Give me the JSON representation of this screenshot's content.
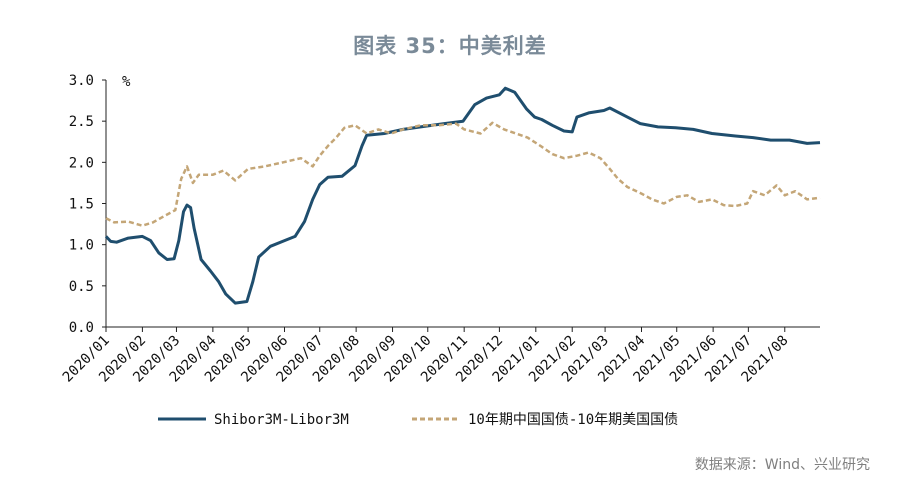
{
  "title": "图表 35：中美利差",
  "source": "数据来源：Wind、兴业研究",
  "chart_data": {
    "type": "line",
    "ylabel": "%",
    "ylim": [
      0,
      3
    ],
    "yticks": [
      "0.0",
      "0.5",
      "1.0",
      "1.5",
      "2.0",
      "2.5",
      "3.0"
    ],
    "xlim": [
      "2020-01-01",
      "2021-08-31"
    ],
    "xticks": [
      "2020/01",
      "2020/02",
      "2020/03",
      "2020/04",
      "2020/05",
      "2020/06",
      "2020/07",
      "2020/08",
      "2020/09",
      "2020/10",
      "2020/11",
      "2020/12",
      "2021/01",
      "2021/02",
      "2021/03",
      "2021/04",
      "2021/05",
      "2021/06",
      "2021/07",
      "2021/08"
    ],
    "colors": {
      "shibor": "#1f4e6e",
      "cn_us": "#c4a677"
    },
    "series": [
      {
        "name": "Shibor3M-Libor3M",
        "style": "solid",
        "points": [
          [
            "2020-01-01",
            1.1
          ],
          [
            "2020-01-05",
            1.04
          ],
          [
            "2020-01-10",
            1.03
          ],
          [
            "2020-01-20",
            1.08
          ],
          [
            "2020-02-01",
            1.1
          ],
          [
            "2020-02-08",
            1.05
          ],
          [
            "2020-02-15",
            0.9
          ],
          [
            "2020-02-22",
            0.82
          ],
          [
            "2020-02-28",
            0.83
          ],
          [
            "2020-03-03",
            1.05
          ],
          [
            "2020-03-07",
            1.4
          ],
          [
            "2020-03-10",
            1.48
          ],
          [
            "2020-03-13",
            1.45
          ],
          [
            "2020-03-16",
            1.2
          ],
          [
            "2020-03-22",
            0.82
          ],
          [
            "2020-03-30",
            0.68
          ],
          [
            "2020-04-06",
            0.55
          ],
          [
            "2020-04-12",
            0.4
          ],
          [
            "2020-04-20",
            0.29
          ],
          [
            "2020-04-30",
            0.31
          ],
          [
            "2020-05-05",
            0.55
          ],
          [
            "2020-05-10",
            0.85
          ],
          [
            "2020-05-20",
            0.98
          ],
          [
            "2020-06-01",
            1.05
          ],
          [
            "2020-06-10",
            1.1
          ],
          [
            "2020-06-18",
            1.28
          ],
          [
            "2020-06-25",
            1.55
          ],
          [
            "2020-07-01",
            1.73
          ],
          [
            "2020-07-08",
            1.82
          ],
          [
            "2020-07-20",
            1.83
          ],
          [
            "2020-07-31",
            1.96
          ],
          [
            "2020-08-06",
            2.2
          ],
          [
            "2020-08-10",
            2.33
          ],
          [
            "2020-08-25",
            2.35
          ],
          [
            "2020-09-10",
            2.4
          ],
          [
            "2020-09-25",
            2.43
          ],
          [
            "2020-10-15",
            2.47
          ],
          [
            "2020-10-31",
            2.5
          ],
          [
            "2020-11-10",
            2.7
          ],
          [
            "2020-11-20",
            2.78
          ],
          [
            "2020-12-01",
            2.82
          ],
          [
            "2020-12-06",
            2.9
          ],
          [
            "2020-12-14",
            2.85
          ],
          [
            "2020-12-24",
            2.65
          ],
          [
            "2020-12-31",
            2.55
          ],
          [
            "2021-01-06",
            2.52
          ],
          [
            "2021-01-15",
            2.45
          ],
          [
            "2021-01-25",
            2.38
          ],
          [
            "2021-02-01",
            2.37
          ],
          [
            "2021-02-05",
            2.55
          ],
          [
            "2021-02-15",
            2.6
          ],
          [
            "2021-02-28",
            2.63
          ],
          [
            "2021-03-05",
            2.66
          ],
          [
            "2021-03-20",
            2.55
          ],
          [
            "2021-03-31",
            2.47
          ],
          [
            "2021-04-15",
            2.43
          ],
          [
            "2021-04-30",
            2.42
          ],
          [
            "2021-05-15",
            2.4
          ],
          [
            "2021-05-31",
            2.35
          ],
          [
            "2021-06-20",
            2.32
          ],
          [
            "2021-07-05",
            2.3
          ],
          [
            "2021-07-20",
            2.27
          ],
          [
            "2021-08-05",
            2.27
          ],
          [
            "2021-08-20",
            2.23
          ],
          [
            "2021-08-31",
            2.24
          ]
        ]
      },
      {
        "name": "10年期中国国债-10年期美国国债",
        "style": "dashed",
        "points": [
          [
            "2020-01-01",
            1.32
          ],
          [
            "2020-01-08",
            1.27
          ],
          [
            "2020-01-20",
            1.28
          ],
          [
            "2020-02-01",
            1.23
          ],
          [
            "2020-02-10",
            1.27
          ],
          [
            "2020-02-20",
            1.35
          ],
          [
            "2020-02-29",
            1.42
          ],
          [
            "2020-03-05",
            1.8
          ],
          [
            "2020-03-10",
            1.95
          ],
          [
            "2020-03-15",
            1.75
          ],
          [
            "2020-03-20",
            1.85
          ],
          [
            "2020-04-01",
            1.85
          ],
          [
            "2020-04-10",
            1.9
          ],
          [
            "2020-04-20",
            1.78
          ],
          [
            "2020-05-01",
            1.92
          ],
          [
            "2020-05-15",
            1.95
          ],
          [
            "2020-05-31",
            2.0
          ],
          [
            "2020-06-15",
            2.05
          ],
          [
            "2020-06-25",
            1.95
          ],
          [
            "2020-07-01",
            2.08
          ],
          [
            "2020-07-08",
            2.2
          ],
          [
            "2020-07-15",
            2.3
          ],
          [
            "2020-07-22",
            2.42
          ],
          [
            "2020-07-31",
            2.45
          ],
          [
            "2020-08-10",
            2.35
          ],
          [
            "2020-08-20",
            2.4
          ],
          [
            "2020-08-31",
            2.35
          ],
          [
            "2020-09-10",
            2.4
          ],
          [
            "2020-09-25",
            2.45
          ],
          [
            "2020-10-10",
            2.45
          ],
          [
            "2020-10-25",
            2.47
          ],
          [
            "2020-11-01",
            2.4
          ],
          [
            "2020-11-15",
            2.35
          ],
          [
            "2020-11-25",
            2.48
          ],
          [
            "2020-12-05",
            2.4
          ],
          [
            "2020-12-15",
            2.35
          ],
          [
            "2020-12-25",
            2.3
          ],
          [
            "2021-01-05",
            2.2
          ],
          [
            "2021-01-15",
            2.1
          ],
          [
            "2021-01-25",
            2.05
          ],
          [
            "2021-02-05",
            2.08
          ],
          [
            "2021-02-15",
            2.12
          ],
          [
            "2021-02-25",
            2.05
          ],
          [
            "2021-03-05",
            1.92
          ],
          [
            "2021-03-12",
            1.8
          ],
          [
            "2021-03-20",
            1.7
          ],
          [
            "2021-04-01",
            1.62
          ],
          [
            "2021-04-10",
            1.55
          ],
          [
            "2021-04-20",
            1.5
          ],
          [
            "2021-05-01",
            1.58
          ],
          [
            "2021-05-10",
            1.6
          ],
          [
            "2021-05-20",
            1.52
          ],
          [
            "2021-05-31",
            1.55
          ],
          [
            "2021-06-10",
            1.48
          ],
          [
            "2021-06-20",
            1.47
          ],
          [
            "2021-06-30",
            1.5
          ],
          [
            "2021-07-05",
            1.65
          ],
          [
            "2021-07-15",
            1.6
          ],
          [
            "2021-07-25",
            1.72
          ],
          [
            "2021-08-01",
            1.6
          ],
          [
            "2021-08-10",
            1.65
          ],
          [
            "2021-08-20",
            1.55
          ],
          [
            "2021-08-31",
            1.57
          ]
        ]
      }
    ]
  }
}
